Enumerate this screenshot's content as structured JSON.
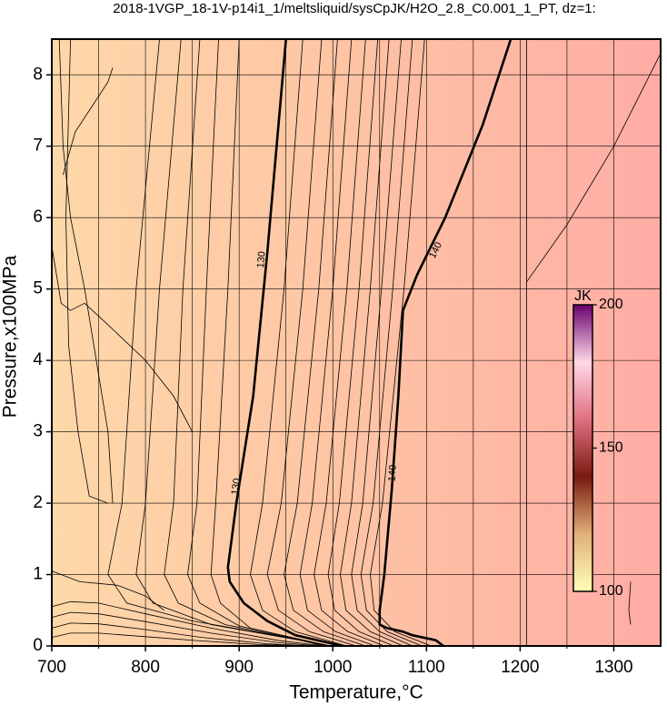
{
  "chart_data": {
    "type": "contour",
    "title": "2018-1VGP_18-1V-p14i1_1/meltsliquid/sysCpJK/H2O_2.8_C0.001_1_PT, dz=1:",
    "x_label": "Temperature,°C",
    "y_label": "Pressure,x100MPa",
    "xlim": [
      700,
      1350
    ],
    "ylim": [
      0,
      8.5
    ],
    "xticks": [
      700,
      800,
      900,
      1000,
      1100,
      1200,
      1300
    ],
    "xminor": [
      750,
      850,
      950,
      1050,
      1150,
      1250
    ],
    "yticks": [
      0,
      1,
      2,
      3,
      4,
      5,
      6,
      7,
      8
    ],
    "grid": true,
    "fill_colors": [
      "#fed8a9",
      "#fec3a4",
      "#ffaca5"
    ],
    "contours": [
      {
        "label": "130",
        "bold": true,
        "label_at": [
          [
            924,
            5.41
          ],
          [
            897,
            2.23
          ]
        ],
        "x": [
          950,
          940,
          930,
          915,
          897,
          888,
          890,
          905,
          930,
          960,
          1000,
          1010
        ],
        "y": [
          8.5,
          7,
          5.5,
          3.5,
          2,
          1.1,
          0.9,
          0.6,
          0.35,
          0.15,
          0.03,
          0
        ]
      },
      {
        "label": "140",
        "bold": true,
        "label_at": [
          [
            1110,
            5.54
          ],
          [
            1064,
            2.42
          ]
        ],
        "x": [
          1190,
          1160,
          1120,
          1090,
          1075,
          1070,
          1063,
          1055,
          1050,
          1050,
          1058,
          1075,
          1085,
          1110,
          1118
        ],
        "y": [
          8.5,
          7.3,
          6,
          5.2,
          4.7,
          3.5,
          2.2,
          1,
          0.5,
          0.3,
          0.25,
          0.2,
          0.15,
          0.08,
          0
        ]
      },
      {
        "x": [
          1207,
          1207
        ],
        "y": [
          0,
          8.5
        ]
      },
      {
        "x": [
          1207,
          1250,
          1300,
          1350
        ],
        "y": [
          5.1,
          5.9,
          7.0,
          8.3
        ]
      },
      {
        "x": [
          1318,
          1316,
          1318
        ],
        "y": [
          0.9,
          0.5,
          0.3
        ]
      },
      {
        "x": [
          968,
          948,
          925,
          912,
          925,
          960,
          1015
        ],
        "y": [
          8.5,
          5,
          2,
          1,
          0.5,
          0.2,
          0
        ]
      },
      {
        "x": [
          988,
          968,
          945,
          930,
          942,
          975,
          1025
        ],
        "y": [
          8.5,
          5,
          2,
          1,
          0.5,
          0.2,
          0
        ]
      },
      {
        "x": [
          1005,
          985,
          962,
          948,
          958,
          990,
          1035
        ],
        "y": [
          8.5,
          5,
          2,
          1,
          0.5,
          0.2,
          0
        ]
      },
      {
        "x": [
          1020,
          1000,
          978,
          965,
          973,
          1003,
          1045
        ],
        "y": [
          8.5,
          5,
          2,
          1,
          0.5,
          0.2,
          0
        ]
      },
      {
        "x": [
          1035,
          1015,
          993,
          980,
          988,
          1016,
          1055
        ],
        "y": [
          8.5,
          5,
          2,
          1,
          0.5,
          0.2,
          0
        ]
      },
      {
        "x": [
          1048,
          1028,
          1007,
          995,
          1002,
          1028,
          1065
        ],
        "y": [
          8.5,
          5,
          2,
          1,
          0.5,
          0.2,
          0
        ]
      },
      {
        "x": [
          1060,
          1040,
          1020,
          1008,
          1014,
          1040,
          1075
        ],
        "y": [
          8.5,
          5,
          2,
          1,
          0.5,
          0.2,
          0
        ]
      },
      {
        "x": [
          1073,
          1052,
          1032,
          1020,
          1026,
          1050,
          1085
        ],
        "y": [
          8.5,
          5,
          2,
          1,
          0.5,
          0.2,
          0
        ]
      },
      {
        "x": [
          1085,
          1064,
          1043,
          1030,
          1036,
          1058,
          1095
        ],
        "y": [
          8.5,
          5,
          2,
          1,
          0.5,
          0.2,
          0
        ]
      },
      {
        "x": [
          1098,
          1076,
          1053,
          1040,
          1044,
          1066,
          1105
        ],
        "y": [
          8.5,
          5,
          2,
          1,
          0.5,
          0.2,
          0
        ]
      },
      {
        "x": [
          815,
          790,
          775,
          760,
          780,
          850,
          960,
          990
        ],
        "y": [
          8.5,
          5,
          2,
          1,
          0.6,
          0.35,
          0.1,
          0
        ]
      },
      {
        "x": [
          838,
          815,
          800,
          790,
          808,
          870,
          965,
          992
        ],
        "y": [
          8.5,
          5,
          2,
          1,
          0.6,
          0.3,
          0.08,
          0
        ]
      },
      {
        "x": [
          858,
          840,
          830,
          820,
          835,
          885,
          970,
          994
        ],
        "y": [
          8.5,
          5,
          2,
          1,
          0.6,
          0.3,
          0.07,
          0
        ]
      },
      {
        "x": [
          878,
          865,
          855,
          845,
          858,
          900,
          975,
          996
        ],
        "y": [
          8.5,
          5,
          2,
          1,
          0.6,
          0.28,
          0.06,
          0
        ]
      },
      {
        "x": [
          900,
          888,
          875,
          870,
          880,
          912,
          980,
          998
        ],
        "y": [
          8.5,
          5,
          2,
          1,
          0.6,
          0.25,
          0.05,
          0
        ]
      },
      {
        "x": [
          708,
          712,
          720,
          735,
          760,
          765
        ],
        "y": [
          8.5,
          7,
          6,
          5,
          3,
          2
        ]
      },
      {
        "x": [
          712,
          725,
          745,
          760,
          765
        ],
        "y": [
          6.6,
          7.2,
          7.6,
          7.9,
          8.1
        ]
      },
      {
        "x": [
          700,
          710,
          720,
          735,
          760,
          800,
          830,
          850
        ],
        "y": [
          5.6,
          4.8,
          4.7,
          4.8,
          4.5,
          4.0,
          3.5,
          3.0
        ]
      },
      {
        "x": [
          720,
          715,
          718,
          728,
          740,
          760
        ],
        "y": [
          8.5,
          6,
          4.2,
          3,
          2.1,
          2.0
        ]
      },
      {
        "x": [
          700,
          720,
          750,
          800,
          870,
          940,
          990
        ],
        "y": [
          0.55,
          0.62,
          0.6,
          0.45,
          0.25,
          0.08,
          0
        ]
      },
      {
        "x": [
          700,
          720,
          750,
          800,
          870,
          940,
          985
        ],
        "y": [
          0.4,
          0.47,
          0.45,
          0.34,
          0.18,
          0.05,
          0
        ]
      },
      {
        "x": [
          700,
          720,
          750,
          800,
          860,
          930,
          980
        ],
        "y": [
          0.25,
          0.32,
          0.31,
          0.23,
          0.12,
          0.03,
          0
        ]
      },
      {
        "x": [
          700,
          720,
          750,
          800,
          860,
          920,
          975
        ],
        "y": [
          0.12,
          0.18,
          0.18,
          0.13,
          0.07,
          0.02,
          0
        ]
      },
      {
        "x": [
          700,
          730,
          770,
          800,
          820
        ],
        "y": [
          1.05,
          0.9,
          0.85,
          0.7,
          0.5
        ]
      }
    ],
    "colorbar": {
      "label": "JK",
      "lim": [
        100,
        200
      ],
      "ticks": [
        100,
        150,
        200
      ],
      "colors": [
        "#ffffb8",
        "#e0b078",
        "#7a1a10",
        "#e07080",
        "#ffd8e8",
        "#6a0070"
      ]
    }
  }
}
